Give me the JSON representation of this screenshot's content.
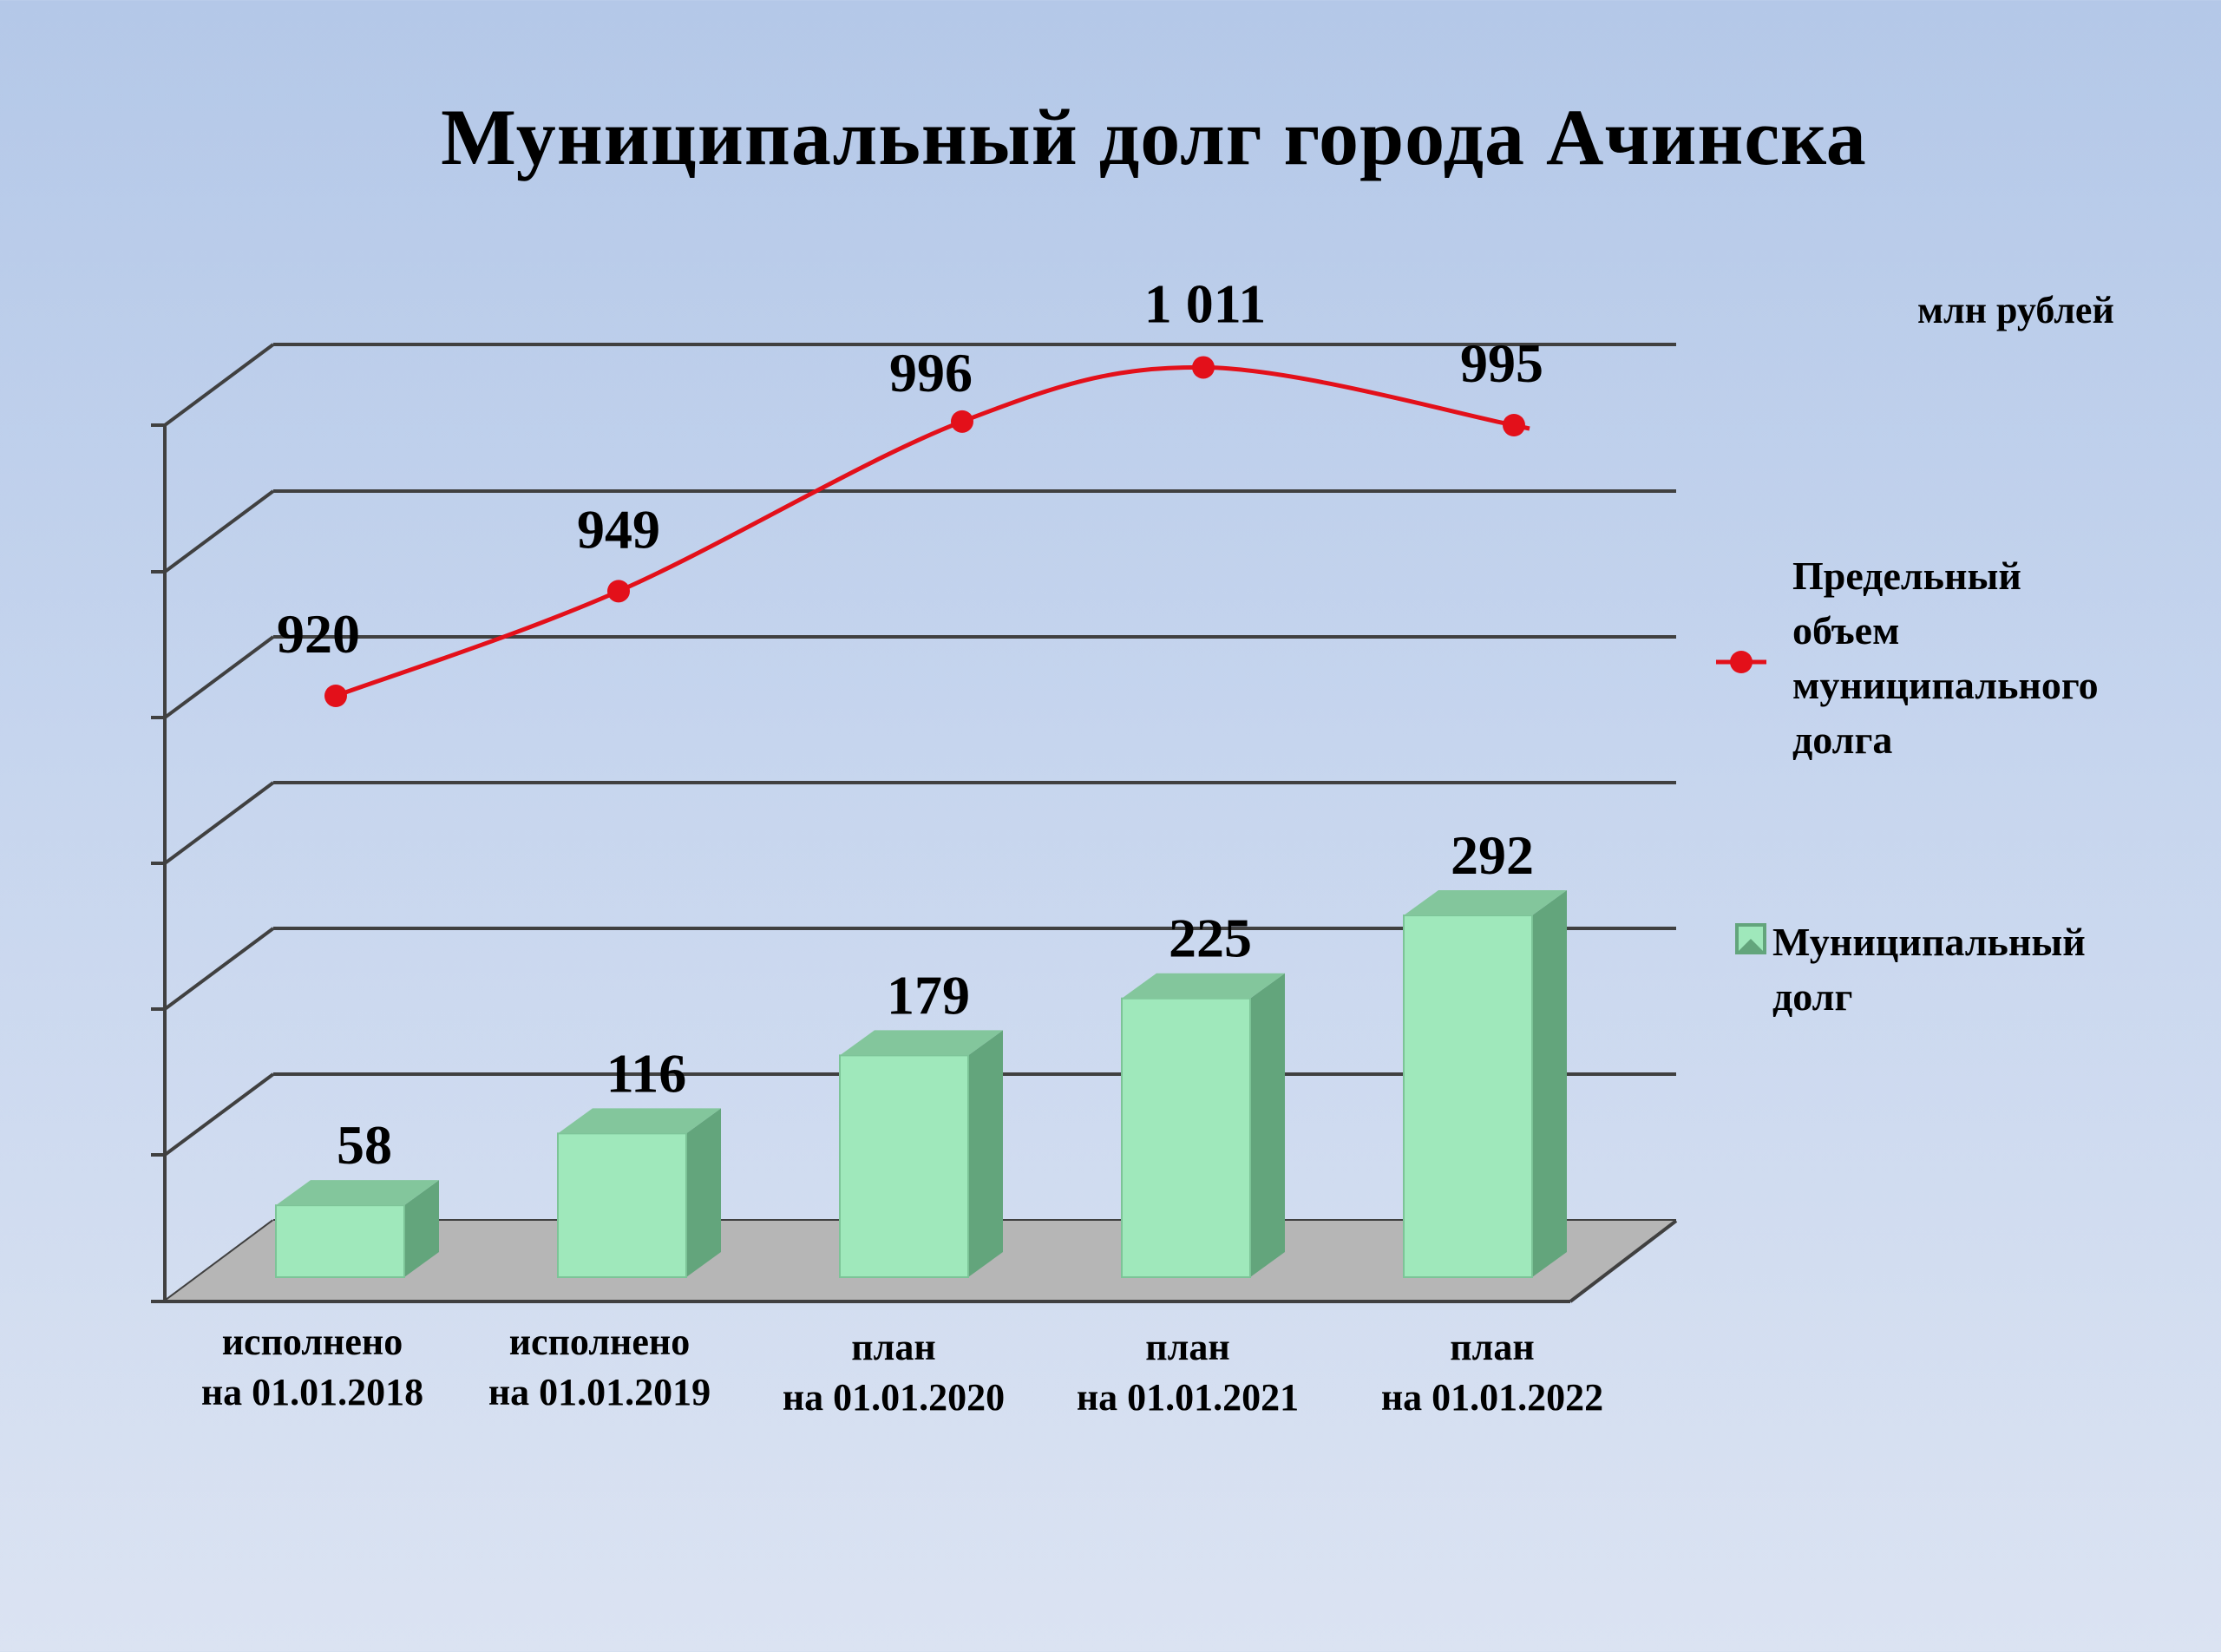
{
  "title": "Муниципальный  долг  города Ачинска",
  "units": "млн рублей",
  "colors": {
    "bar_front": "#9fe8bb",
    "bar_side": "#63a57c",
    "bar_top": "#83c69c",
    "line": "#e3101a",
    "floor": "#b6b6b6",
    "grid": "#404040"
  },
  "chart_data": {
    "type": "bar",
    "categories": [
      [
        "исполнено",
        "на 01.01.2018"
      ],
      [
        "исполнено",
        "на 01.01.2019"
      ],
      [
        "план",
        "на 01.01.2020"
      ],
      [
        "план",
        "на 01.01.2021"
      ],
      [
        "план",
        "на 01.01.2022"
      ]
    ],
    "series": [
      {
        "name": "Муниципальный долг",
        "type": "bar",
        "values": [
          58,
          116,
          179,
          225,
          292
        ],
        "labels": [
          "58",
          "116",
          "179",
          "225",
          "292"
        ]
      },
      {
        "name": "Предельный объем муниципального долга",
        "name_lines": [
          "Предельный",
          "объем",
          "муниципального",
          "долга"
        ],
        "type": "line",
        "values": [
          920,
          949,
          996,
          1011,
          995
        ],
        "labels": [
          "920",
          "949",
          "996",
          "1 011",
          "995"
        ]
      }
    ],
    "legend": {
      "position": "right",
      "bar_lines": [
        "Муниципальный",
        "долг"
      ]
    },
    "grid": true,
    "three_d": true
  }
}
